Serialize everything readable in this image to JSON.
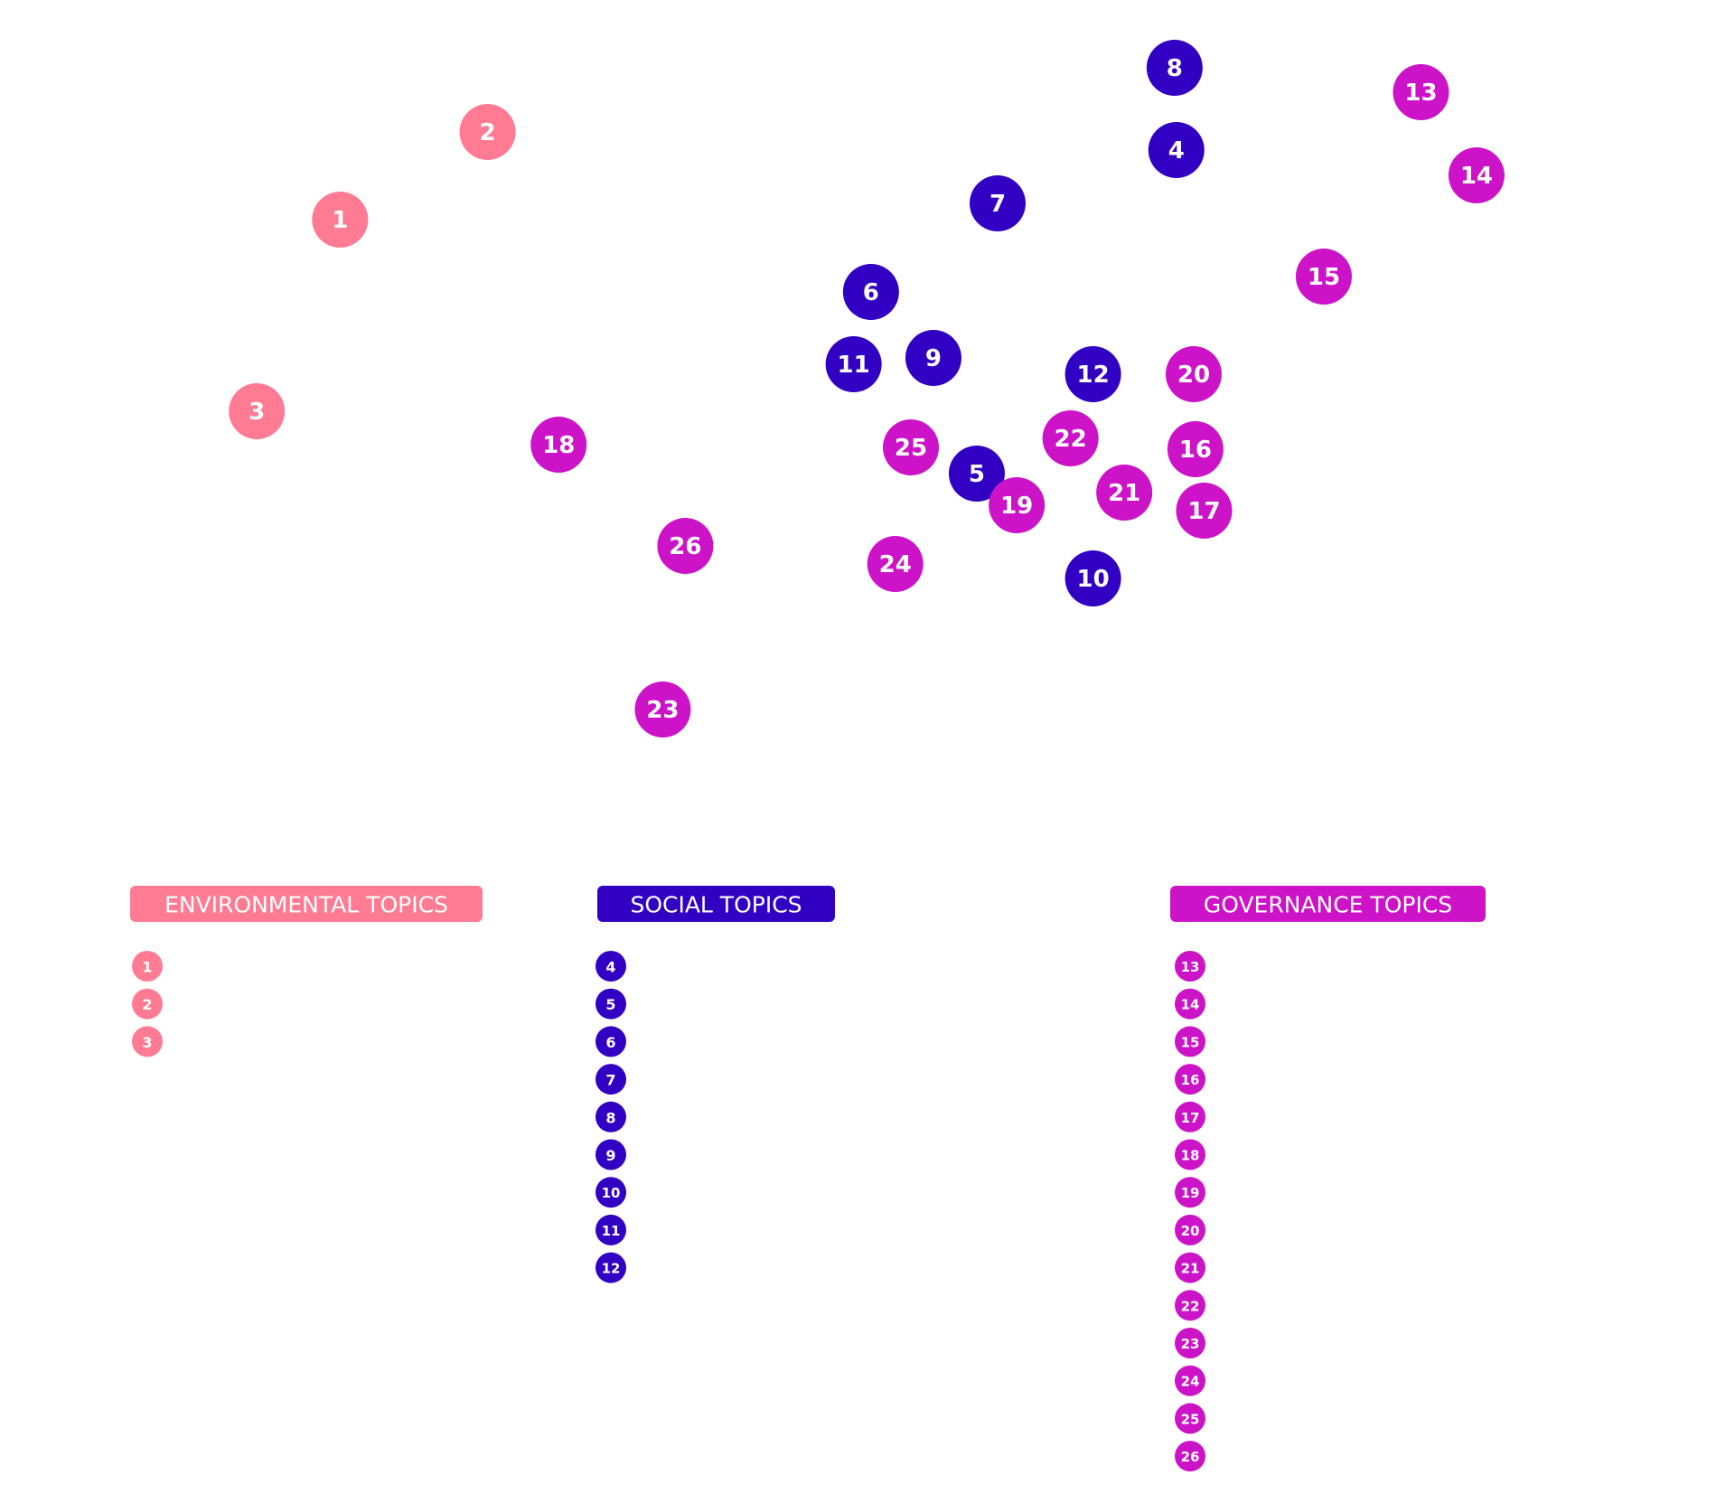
{
  "chart_data": {
    "type": "scatter",
    "title": "",
    "xlabel": "",
    "ylabel": "",
    "grid": false,
    "legend_position": "bottom",
    "colors": {
      "environmental": "#ff7b93",
      "social": "#3200c2",
      "governance": "#cc13c8"
    },
    "groups": [
      {
        "key": "environmental",
        "name": "ENVIRONMENTAL TOPICS",
        "color": "#ff7b93",
        "items": [
          "1",
          "2",
          "3"
        ]
      },
      {
        "key": "social",
        "name": "SOCIAL TOPICS",
        "color": "#3200c2",
        "items": [
          "4",
          "5",
          "6",
          "7",
          "8",
          "9",
          "10",
          "11",
          "12"
        ]
      },
      {
        "key": "governance",
        "name": "GOVERNANCE TOPICS",
        "color": "#cc13c8",
        "items": [
          "13",
          "14",
          "15",
          "16",
          "17",
          "18",
          "19",
          "20",
          "21",
          "22",
          "23",
          "24",
          "25",
          "26"
        ]
      }
    ],
    "points": [
      {
        "label": "1",
        "group": "environmental",
        "x": 0.196,
        "y": 0.757
      },
      {
        "label": "2",
        "group": "environmental",
        "x": 0.281,
        "y": 0.854
      },
      {
        "label": "3",
        "group": "environmental",
        "x": 0.148,
        "y": 0.545
      },
      {
        "label": "4",
        "group": "social",
        "x": 0.678,
        "y": 0.834
      },
      {
        "label": "5",
        "group": "social",
        "x": 0.563,
        "y": 0.476
      },
      {
        "label": "6",
        "group": "social",
        "x": 0.502,
        "y": 0.677
      },
      {
        "label": "7",
        "group": "social",
        "x": 0.575,
        "y": 0.775
      },
      {
        "label": "8",
        "group": "social",
        "x": 0.677,
        "y": 0.925
      },
      {
        "label": "9",
        "group": "social",
        "x": 0.538,
        "y": 0.604
      },
      {
        "label": "10",
        "group": "social",
        "x": 0.63,
        "y": 0.36
      },
      {
        "label": "11",
        "group": "social",
        "x": 0.492,
        "y": 0.597
      },
      {
        "label": "12",
        "group": "social",
        "x": 0.63,
        "y": 0.586
      },
      {
        "label": "13",
        "group": "governance",
        "x": 0.819,
        "y": 0.898
      },
      {
        "label": "14",
        "group": "governance",
        "x": 0.851,
        "y": 0.806
      },
      {
        "label": "15",
        "group": "governance",
        "x": 0.763,
        "y": 0.694
      },
      {
        "label": "16",
        "group": "governance",
        "x": 0.689,
        "y": 0.503
      },
      {
        "label": "17",
        "group": "governance",
        "x": 0.694,
        "y": 0.435
      },
      {
        "label": "18",
        "group": "governance",
        "x": 0.322,
        "y": 0.508
      },
      {
        "label": "19",
        "group": "governance",
        "x": 0.586,
        "y": 0.441
      },
      {
        "label": "20",
        "group": "governance",
        "x": 0.688,
        "y": 0.586
      },
      {
        "label": "21",
        "group": "governance",
        "x": 0.648,
        "y": 0.455
      },
      {
        "label": "22",
        "group": "governance",
        "x": 0.617,
        "y": 0.515
      },
      {
        "label": "23",
        "group": "governance",
        "x": 0.382,
        "y": 0.215
      },
      {
        "label": "24",
        "group": "governance",
        "x": 0.516,
        "y": 0.376
      },
      {
        "label": "25",
        "group": "governance",
        "x": 0.525,
        "y": 0.505
      },
      {
        "label": "26",
        "group": "governance",
        "x": 0.395,
        "y": 0.396
      }
    ]
  }
}
